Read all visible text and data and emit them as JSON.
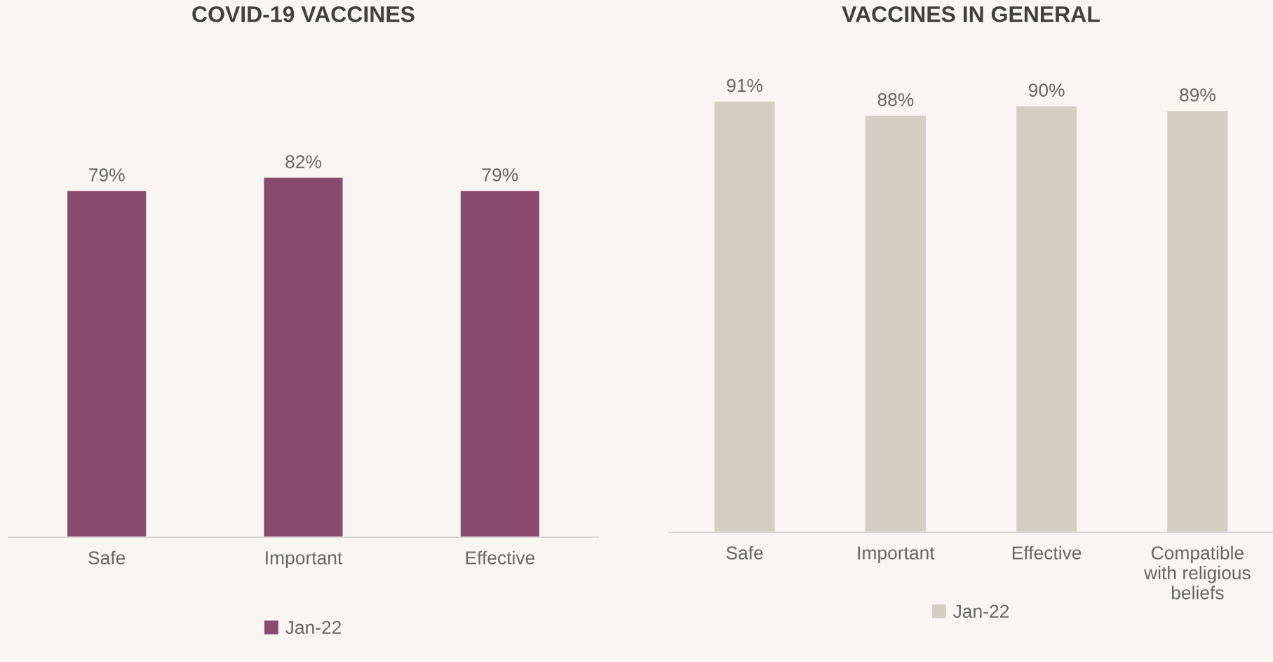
{
  "chart_data": [
    {
      "type": "bar",
      "title": "COVID-19 VACCINES",
      "categories": [
        "Safe",
        "Important",
        "Effective"
      ],
      "legend": "bottom",
      "tick_labels": "x",
      "series": [
        {
          "name": "Jan-22",
          "color": "#8b4b6e",
          "values": [
            79,
            82,
            79
          ],
          "value_labels": [
            "79%",
            "82%",
            "79%"
          ]
        }
      ]
    },
    {
      "type": "bar",
      "title": "VACCINES IN GENERAL",
      "categories": [
        "Safe",
        "Important",
        "Effective",
        "Compatible\nwith religious\nbeliefs"
      ],
      "legend": "bottom",
      "tick_labels": "x",
      "series": [
        {
          "name": "Jan-22",
          "color": "#d5cec3",
          "values": [
            91,
            88,
            90,
            89
          ],
          "value_labels": [
            "91%",
            "88%",
            "90%",
            "89%"
          ]
        }
      ]
    }
  ]
}
